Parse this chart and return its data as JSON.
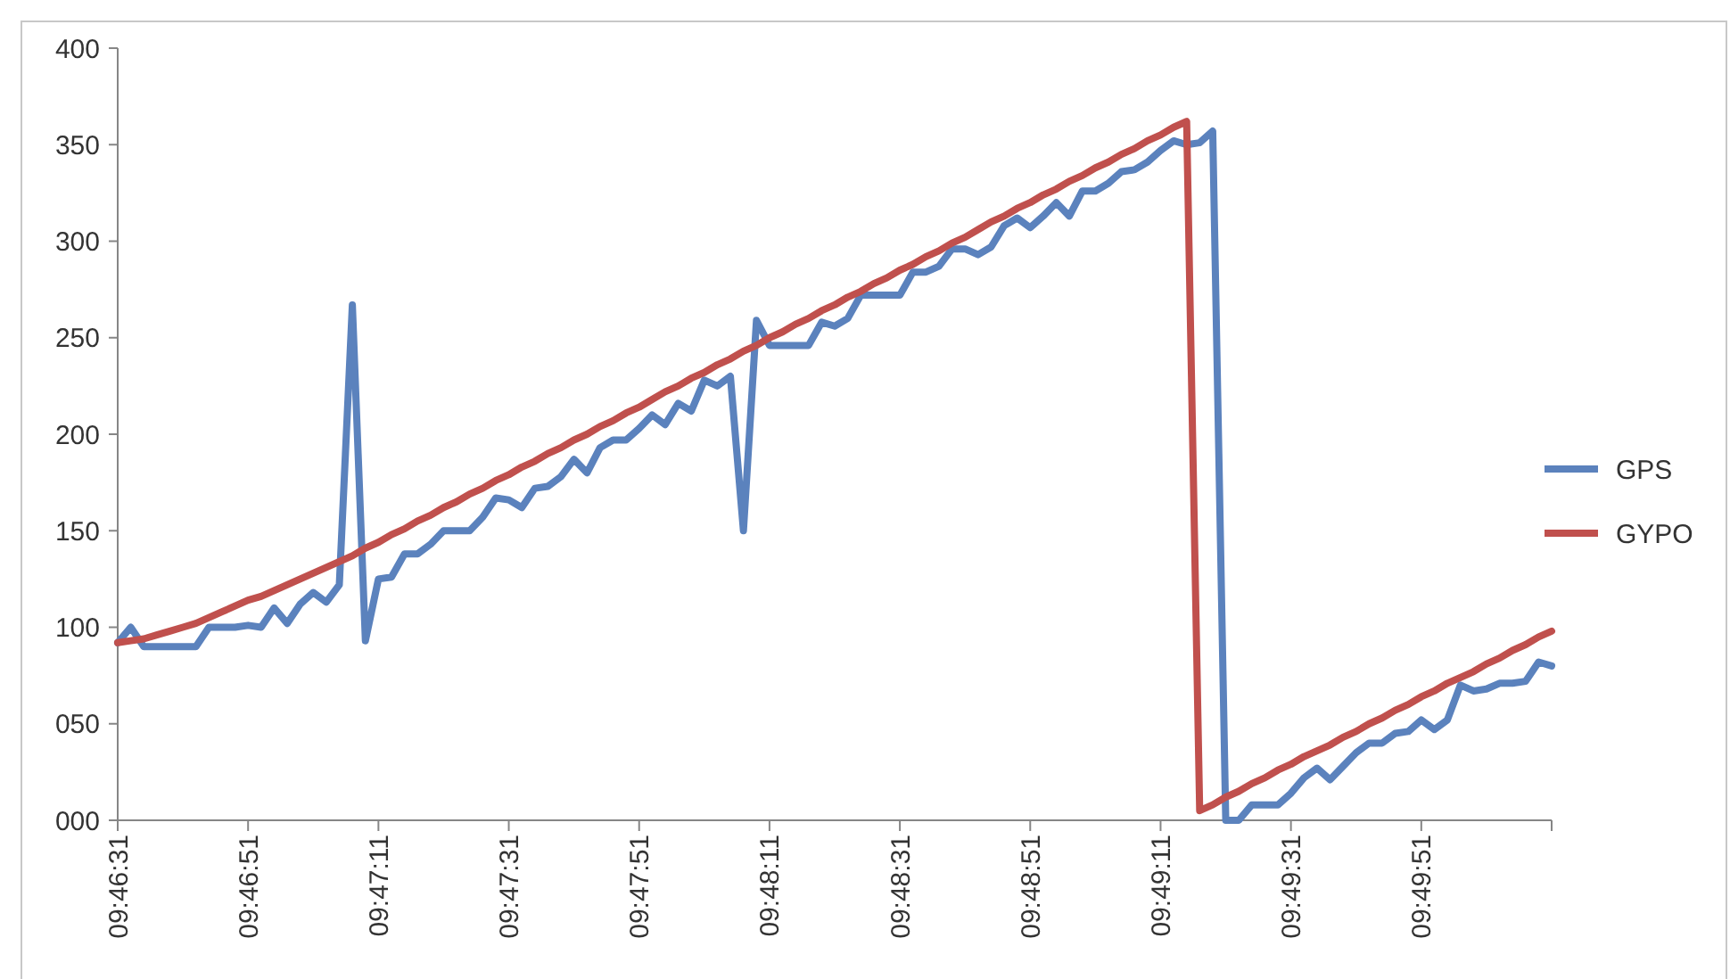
{
  "chart_data": {
    "type": "line",
    "categories": [
      "09:46:31",
      null,
      null,
      null,
      null,
      null,
      null,
      null,
      null,
      null,
      "09:46:51",
      null,
      null,
      null,
      null,
      null,
      null,
      null,
      null,
      null,
      "09:47:11",
      null,
      null,
      null,
      null,
      null,
      null,
      null,
      null,
      null,
      "09:47:31",
      null,
      null,
      null,
      null,
      null,
      null,
      null,
      null,
      null,
      "09:47:51",
      null,
      null,
      null,
      null,
      null,
      null,
      null,
      null,
      null,
      "09:48:11",
      null,
      null,
      null,
      null,
      null,
      null,
      null,
      null,
      null,
      "09:48:31",
      null,
      null,
      null,
      null,
      null,
      null,
      null,
      null,
      null,
      "09:48:51",
      null,
      null,
      null,
      null,
      null,
      null,
      null,
      null,
      null,
      "09:49:11",
      null,
      null,
      null,
      null,
      null,
      null,
      null,
      null,
      null,
      "09:49:31",
      null,
      null,
      null,
      null,
      null,
      null,
      null,
      null,
      null,
      "09:49:51",
      null,
      null,
      null,
      null,
      null,
      null,
      null,
      null,
      null,
      null
    ],
    "series": [
      {
        "name": "GPS",
        "color": "#5b82bd",
        "values": [
          92,
          100,
          90,
          90,
          90,
          90,
          90,
          100,
          100,
          100,
          101,
          100,
          110,
          102,
          112,
          118,
          113,
          122,
          267,
          93,
          125,
          126,
          138,
          138,
          143,
          150,
          150,
          150,
          157,
          167,
          166,
          162,
          172,
          173,
          178,
          187,
          180,
          193,
          197,
          197,
          203,
          210,
          205,
          216,
          212,
          228,
          225,
          230,
          150,
          259,
          246,
          246,
          246,
          246,
          258,
          256,
          260,
          272,
          272,
          272,
          272,
          284,
          284,
          287,
          296,
          296,
          293,
          297,
          308,
          312,
          307,
          313,
          320,
          313,
          326,
          326,
          330,
          336,
          337,
          341,
          347,
          352,
          350,
          351,
          357,
          0,
          0,
          8,
          8,
          8,
          14,
          22,
          27,
          21,
          28,
          35,
          40,
          40,
          45,
          46,
          52,
          47,
          52,
          70,
          67,
          68,
          71,
          71,
          72,
          82,
          80
        ]
      },
      {
        "name": "GYPO",
        "color": "#c0504d",
        "values": [
          92,
          93,
          94,
          96,
          98,
          100,
          102,
          105,
          108,
          111,
          114,
          116,
          119,
          122,
          125,
          128,
          131,
          134,
          137,
          141,
          144,
          148,
          151,
          155,
          158,
          162,
          165,
          169,
          172,
          176,
          179,
          183,
          186,
          190,
          193,
          197,
          200,
          204,
          207,
          211,
          214,
          218,
          222,
          225,
          229,
          232,
          236,
          239,
          243,
          246,
          250,
          253,
          257,
          260,
          264,
          267,
          271,
          274,
          278,
          281,
          285,
          288,
          292,
          295,
          299,
          302,
          306,
          310,
          313,
          317,
          320,
          324,
          327,
          331,
          334,
          338,
          341,
          345,
          348,
          352,
          355,
          359,
          362,
          5,
          8,
          12,
          15,
          19,
          22,
          26,
          29,
          33,
          36,
          39,
          43,
          46,
          50,
          53,
          57,
          60,
          64,
          67,
          71,
          74,
          77,
          81,
          84,
          88,
          91,
          95,
          98
        ]
      }
    ],
    "ylim": [
      0,
      400
    ],
    "yticks": [
      {
        "value": 0,
        "label": "000"
      },
      {
        "value": 50,
        "label": "050"
      },
      100,
      150,
      200,
      250,
      300,
      350,
      400
    ],
    "grid": false,
    "legend": "right",
    "marker": "none",
    "line_style": "solid"
  }
}
